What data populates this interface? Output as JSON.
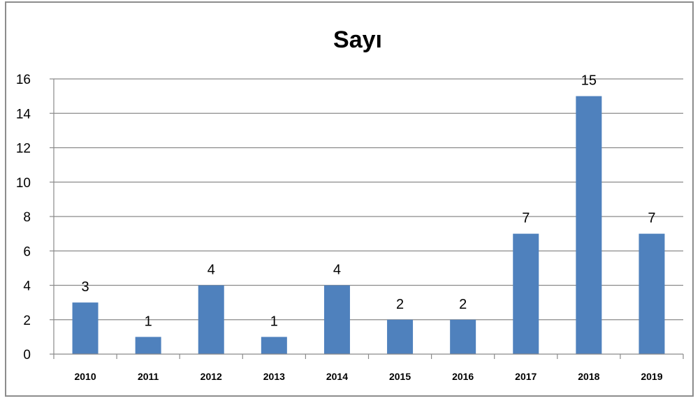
{
  "chart_data": {
    "type": "bar",
    "title": "Sayı",
    "xlabel": "",
    "ylabel": "",
    "categories": [
      "2010",
      "2011",
      "2012",
      "2013",
      "2014",
      "2015",
      "2016",
      "2017",
      "2018",
      "2019"
    ],
    "values": [
      3,
      1,
      4,
      1,
      4,
      2,
      2,
      7,
      15,
      7
    ],
    "ylim": [
      0,
      16
    ],
    "yticks": [
      0,
      2,
      4,
      6,
      8,
      10,
      12,
      14,
      16
    ],
    "grid": true,
    "data_labels": true,
    "legend": "none",
    "bar_color": "#4f81bd",
    "gridline_color": "#8a8a8a"
  }
}
